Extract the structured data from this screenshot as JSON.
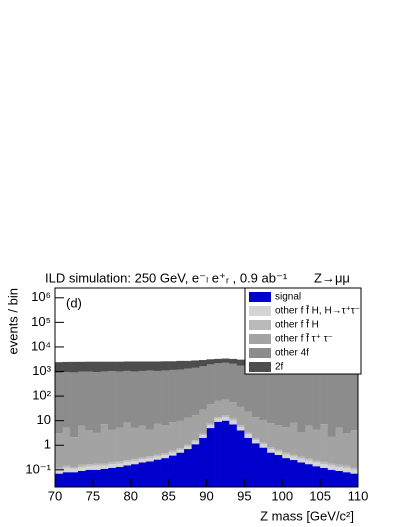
{
  "chart_data": {
    "type": "stacked_histogram",
    "title": "ILD simulation: 250 GeV, e⁻ₗ e⁺ᵣ , 0.9 ab⁻¹",
    "title_right": "Z→μμ",
    "annotation": "(d)",
    "x_label": "Z mass [GeV/c²]",
    "y_label": "events / bin",
    "log_y": true,
    "xlim": [
      70,
      110
    ],
    "ylim": [
      0.02,
      2500000
    ],
    "xticks": [
      70,
      75,
      80,
      85,
      90,
      95,
      100,
      105,
      110
    ],
    "yticks": [
      {
        "value": 0.1,
        "label": "10⁻¹"
      },
      1,
      10,
      {
        "value": 100,
        "label": "10²"
      },
      {
        "value": 1000,
        "label": "10³"
      },
      {
        "value": 10000,
        "label": "10⁴"
      },
      {
        "value": 100000,
        "label": "10⁵"
      },
      {
        "value": 1000000,
        "label": "10⁶"
      }
    ],
    "bins": [
      70,
      71,
      72,
      73,
      74,
      75,
      76,
      77,
      78,
      79,
      80,
      81,
      82,
      83,
      84,
      85,
      86,
      87,
      88,
      89,
      90,
      91,
      92,
      93,
      94,
      95,
      96,
      97,
      98,
      99,
      100,
      101,
      102,
      103,
      104,
      105,
      106,
      107,
      108,
      109,
      110
    ],
    "series": [
      {
        "name": "signal",
        "color": "#0000cc",
        "values": [
          0.07,
          0.08,
          0.08,
          0.09,
          0.1,
          0.1,
          0.11,
          0.12,
          0.13,
          0.15,
          0.17,
          0.2,
          0.22,
          0.26,
          0.3,
          0.38,
          0.5,
          0.7,
          1.1,
          2,
          5,
          9,
          10,
          7,
          4,
          2,
          1.2,
          0.8,
          0.5,
          0.4,
          0.3,
          0.25,
          0.2,
          0.17,
          0.14,
          0.12,
          0.1,
          0.09,
          0.08,
          0.07
        ]
      },
      {
        "name": "other f f̄ H, H→τ⁺τ⁻",
        "color": "#d4d4d4",
        "values": [
          0.03,
          0.04,
          0.03,
          0.04,
          0.04,
          0.05,
          0.04,
          0.05,
          0.05,
          0.06,
          0.06,
          0.07,
          0.08,
          0.09,
          0.1,
          0.12,
          0.15,
          0.2,
          0.3,
          0.6,
          1.5,
          3,
          4,
          3,
          1.5,
          0.8,
          0.4,
          0.3,
          0.2,
          0.15,
          0.12,
          0.1,
          0.08,
          0.07,
          0.06,
          0.05,
          0.05,
          0.04,
          0.04,
          0.03
        ]
      },
      {
        "name": "other f f̄ H",
        "color": "#bababa",
        "values": [
          0.02,
          0.03,
          0.02,
          0.03,
          0.03,
          0.03,
          0.03,
          0.04,
          0.04,
          0.04,
          0.05,
          0.05,
          0.06,
          0.07,
          0.08,
          0.1,
          0.12,
          0.15,
          0.2,
          0.4,
          1,
          2,
          3,
          2,
          1,
          0.5,
          0.3,
          0.2,
          0.15,
          0.1,
          0.08,
          0.07,
          0.06,
          0.05,
          0.04,
          0.04,
          0.03,
          0.03,
          0.03,
          0.02
        ]
      },
      {
        "name": "other f f̄ τ⁺ τ⁻",
        "color": "#a3a3a3",
        "values": [
          3,
          5,
          2,
          6,
          4,
          3,
          7,
          4,
          5,
          8,
          5,
          6,
          4,
          7,
          6,
          8,
          9,
          12,
          15,
          25,
          40,
          50,
          55,
          45,
          30,
          20,
          12,
          9,
          7,
          6,
          5,
          8,
          3,
          6,
          4,
          7,
          2,
          5,
          3,
          4
        ]
      },
      {
        "name": "other 4f",
        "color": "#8c8c8c",
        "values": [
          900,
          950,
          920,
          980,
          1000,
          950,
          1000,
          1050,
          1000,
          1050,
          1000,
          1050,
          1100,
          1050,
          1100,
          1150,
          1200,
          1300,
          1400,
          1600,
          1900,
          2100,
          2200,
          2000,
          1700,
          1500,
          1300,
          1200,
          1100,
          1050,
          1000,
          1000,
          980,
          950,
          950,
          920,
          900,
          900,
          880,
          870
        ]
      },
      {
        "name": "2f",
        "color": "#4d4d4d",
        "values": [
          1500,
          1500,
          1550,
          1500,
          1500,
          1550,
          1500,
          1450,
          1500,
          1500,
          1550,
          1500,
          1450,
          1500,
          1500,
          1450,
          1500,
          1400,
          1400,
          1300,
          1200,
          1100,
          1100,
          1200,
          1300,
          1400,
          1400,
          1450,
          1450,
          1500,
          1500,
          1450,
          1500,
          1500,
          1450,
          1500,
          1500,
          1450,
          1500,
          1500
        ]
      }
    ]
  }
}
